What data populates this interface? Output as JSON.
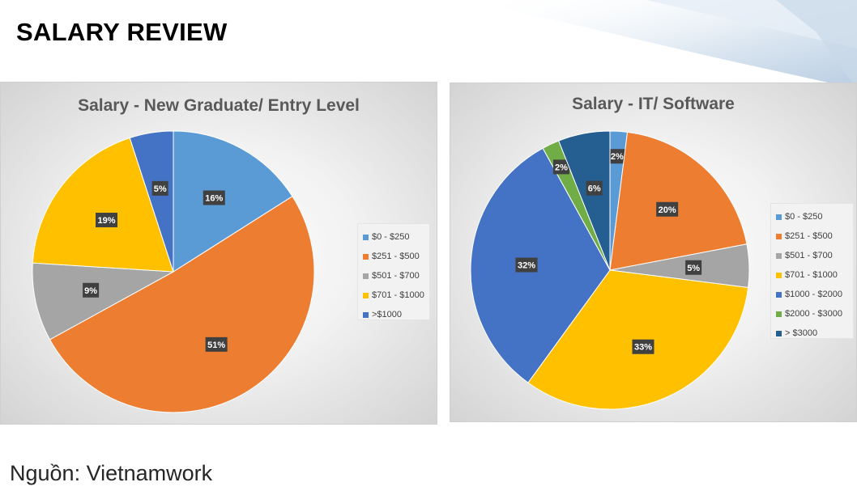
{
  "slide": {
    "title": "SALARY REVIEW",
    "source": "Nguồn: Vietnamwork"
  },
  "chart_data": [
    {
      "type": "pie",
      "title": "Salary - New Graduate/ Entry Level",
      "legend_position": "right",
      "categories": [
        "$0 - $250",
        "$251 - $500",
        "$501 - $700",
        "$701 - $1000",
        ">$1000"
      ],
      "values": [
        16,
        51,
        9,
        19,
        5
      ],
      "labels": [
        "16%",
        "51%",
        "9%",
        "19%",
        "5%"
      ],
      "colors": [
        "#5b9bd5",
        "#ed7d31",
        "#a5a5a5",
        "#ffc000",
        "#4472c4"
      ]
    },
    {
      "type": "pie",
      "title": "Salary - IT/ Software",
      "legend_position": "right",
      "categories": [
        "$0 - $250",
        "$251 - $500",
        "$501 - $700",
        "$701 - $1000",
        "$1000 - $2000",
        "$2000 - $3000",
        "> $3000"
      ],
      "values": [
        2,
        20,
        5,
        33,
        32,
        2,
        6
      ],
      "labels": [
        "2%",
        "20%",
        "5%",
        "33%",
        "32%",
        "2%",
        "6%"
      ],
      "colors": [
        "#5b9bd5",
        "#ed7d31",
        "#a5a5a5",
        "#ffc000",
        "#4472c4",
        "#70ad47",
        "#255e91"
      ]
    }
  ]
}
